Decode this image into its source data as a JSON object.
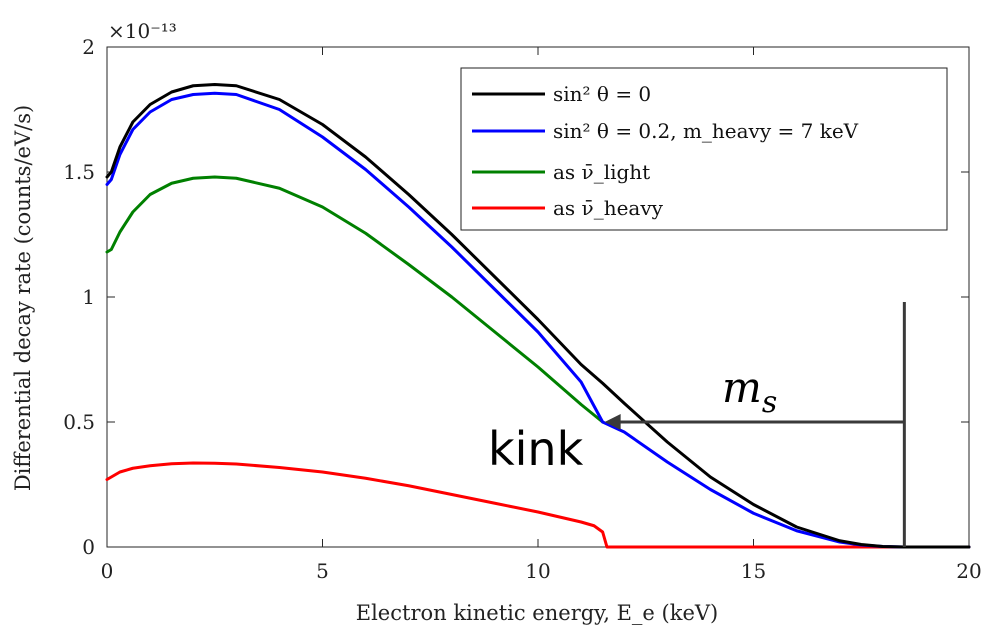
{
  "chart_data": {
    "type": "line",
    "xlabel": "Electron kinetic energy, E_e (keV)",
    "ylabel": "Differential decay rate (counts/eV/s)",
    "y_exponent": "×10⁻¹³",
    "xlim": [
      0,
      20
    ],
    "ylim": [
      0,
      2
    ],
    "xticks": [
      0,
      5,
      10,
      15,
      20
    ],
    "xtick_labels": [
      "0",
      "5",
      "10",
      "15",
      "20"
    ],
    "yticks": [
      0,
      0.5,
      1,
      1.5,
      2
    ],
    "ytick_labels": [
      "0",
      "0.5",
      "1",
      "1.5",
      "2"
    ],
    "grid": false,
    "legend_position": "top-right",
    "series": [
      {
        "name": "sin² θ = 0",
        "color": "#000000",
        "x": [
          0,
          0.1,
          0.3,
          0.6,
          1.0,
          1.5,
          2.0,
          2.5,
          3.0,
          4.0,
          5.0,
          6.0,
          7.0,
          8.0,
          9.0,
          10.0,
          11.0,
          11.5,
          12.0,
          13.0,
          14.0,
          15.0,
          16.0,
          17.0,
          17.5,
          18.0,
          18.5,
          19.0,
          20.0
        ],
        "y": [
          1.48,
          1.5,
          1.6,
          1.7,
          1.77,
          1.82,
          1.845,
          1.85,
          1.845,
          1.79,
          1.69,
          1.56,
          1.41,
          1.25,
          1.08,
          0.91,
          0.73,
          0.655,
          0.575,
          0.42,
          0.28,
          0.17,
          0.08,
          0.025,
          0.01,
          0.002,
          0,
          0,
          0
        ]
      },
      {
        "name": "sin² θ = 0.2,  m_heavy = 7 keV",
        "color": "#0000ff",
        "x": [
          0,
          0.1,
          0.3,
          0.6,
          1.0,
          1.5,
          2.0,
          2.5,
          3.0,
          4.0,
          5.0,
          6.0,
          7.0,
          8.0,
          9.0,
          10.0,
          11.0,
          11.5,
          12.0,
          13.0,
          14.0,
          15.0,
          16.0,
          17.0,
          17.5,
          18.0,
          18.5,
          19.0,
          20.0
        ],
        "y": [
          1.45,
          1.47,
          1.57,
          1.67,
          1.74,
          1.79,
          1.81,
          1.815,
          1.81,
          1.75,
          1.64,
          1.51,
          1.36,
          1.2,
          1.03,
          0.86,
          0.66,
          0.5,
          0.46,
          0.34,
          0.23,
          0.135,
          0.065,
          0.02,
          0.008,
          0.002,
          0,
          0,
          0
        ]
      },
      {
        "name": "as ν̄_light",
        "color": "#008000",
        "x": [
          0,
          0.1,
          0.3,
          0.6,
          1.0,
          1.5,
          2.0,
          2.5,
          3.0,
          4.0,
          5.0,
          6.0,
          7.0,
          8.0,
          9.0,
          10.0,
          11.0,
          11.5
        ],
        "y": [
          1.18,
          1.19,
          1.26,
          1.34,
          1.41,
          1.455,
          1.475,
          1.48,
          1.475,
          1.435,
          1.36,
          1.255,
          1.13,
          1.0,
          0.86,
          0.72,
          0.57,
          0.5
        ]
      },
      {
        "name": "as ν̄_heavy",
        "color": "#ff0000",
        "x": [
          0,
          0.1,
          0.3,
          0.6,
          1.0,
          1.5,
          2.0,
          2.5,
          3.0,
          4.0,
          5.0,
          6.0,
          7.0,
          8.0,
          9.0,
          10.0,
          11.0,
          11.3,
          11.5,
          11.6,
          12.0,
          14.0,
          16.0,
          18.0,
          20.0
        ],
        "y": [
          0.27,
          0.28,
          0.3,
          0.315,
          0.325,
          0.333,
          0.336,
          0.335,
          0.332,
          0.318,
          0.3,
          0.275,
          0.245,
          0.21,
          0.175,
          0.14,
          0.1,
          0.085,
          0.06,
          0,
          0,
          0,
          0,
          0,
          0
        ]
      }
    ],
    "annotations": {
      "kink_label": "kink",
      "ms_label": "m",
      "ms_sub": "s",
      "kink_point": [
        11.5,
        0.5
      ],
      "endpoint_x": 18.5,
      "arrow_start": [
        18.5,
        0.5
      ],
      "vertical_line_top_y": 0.98
    }
  }
}
